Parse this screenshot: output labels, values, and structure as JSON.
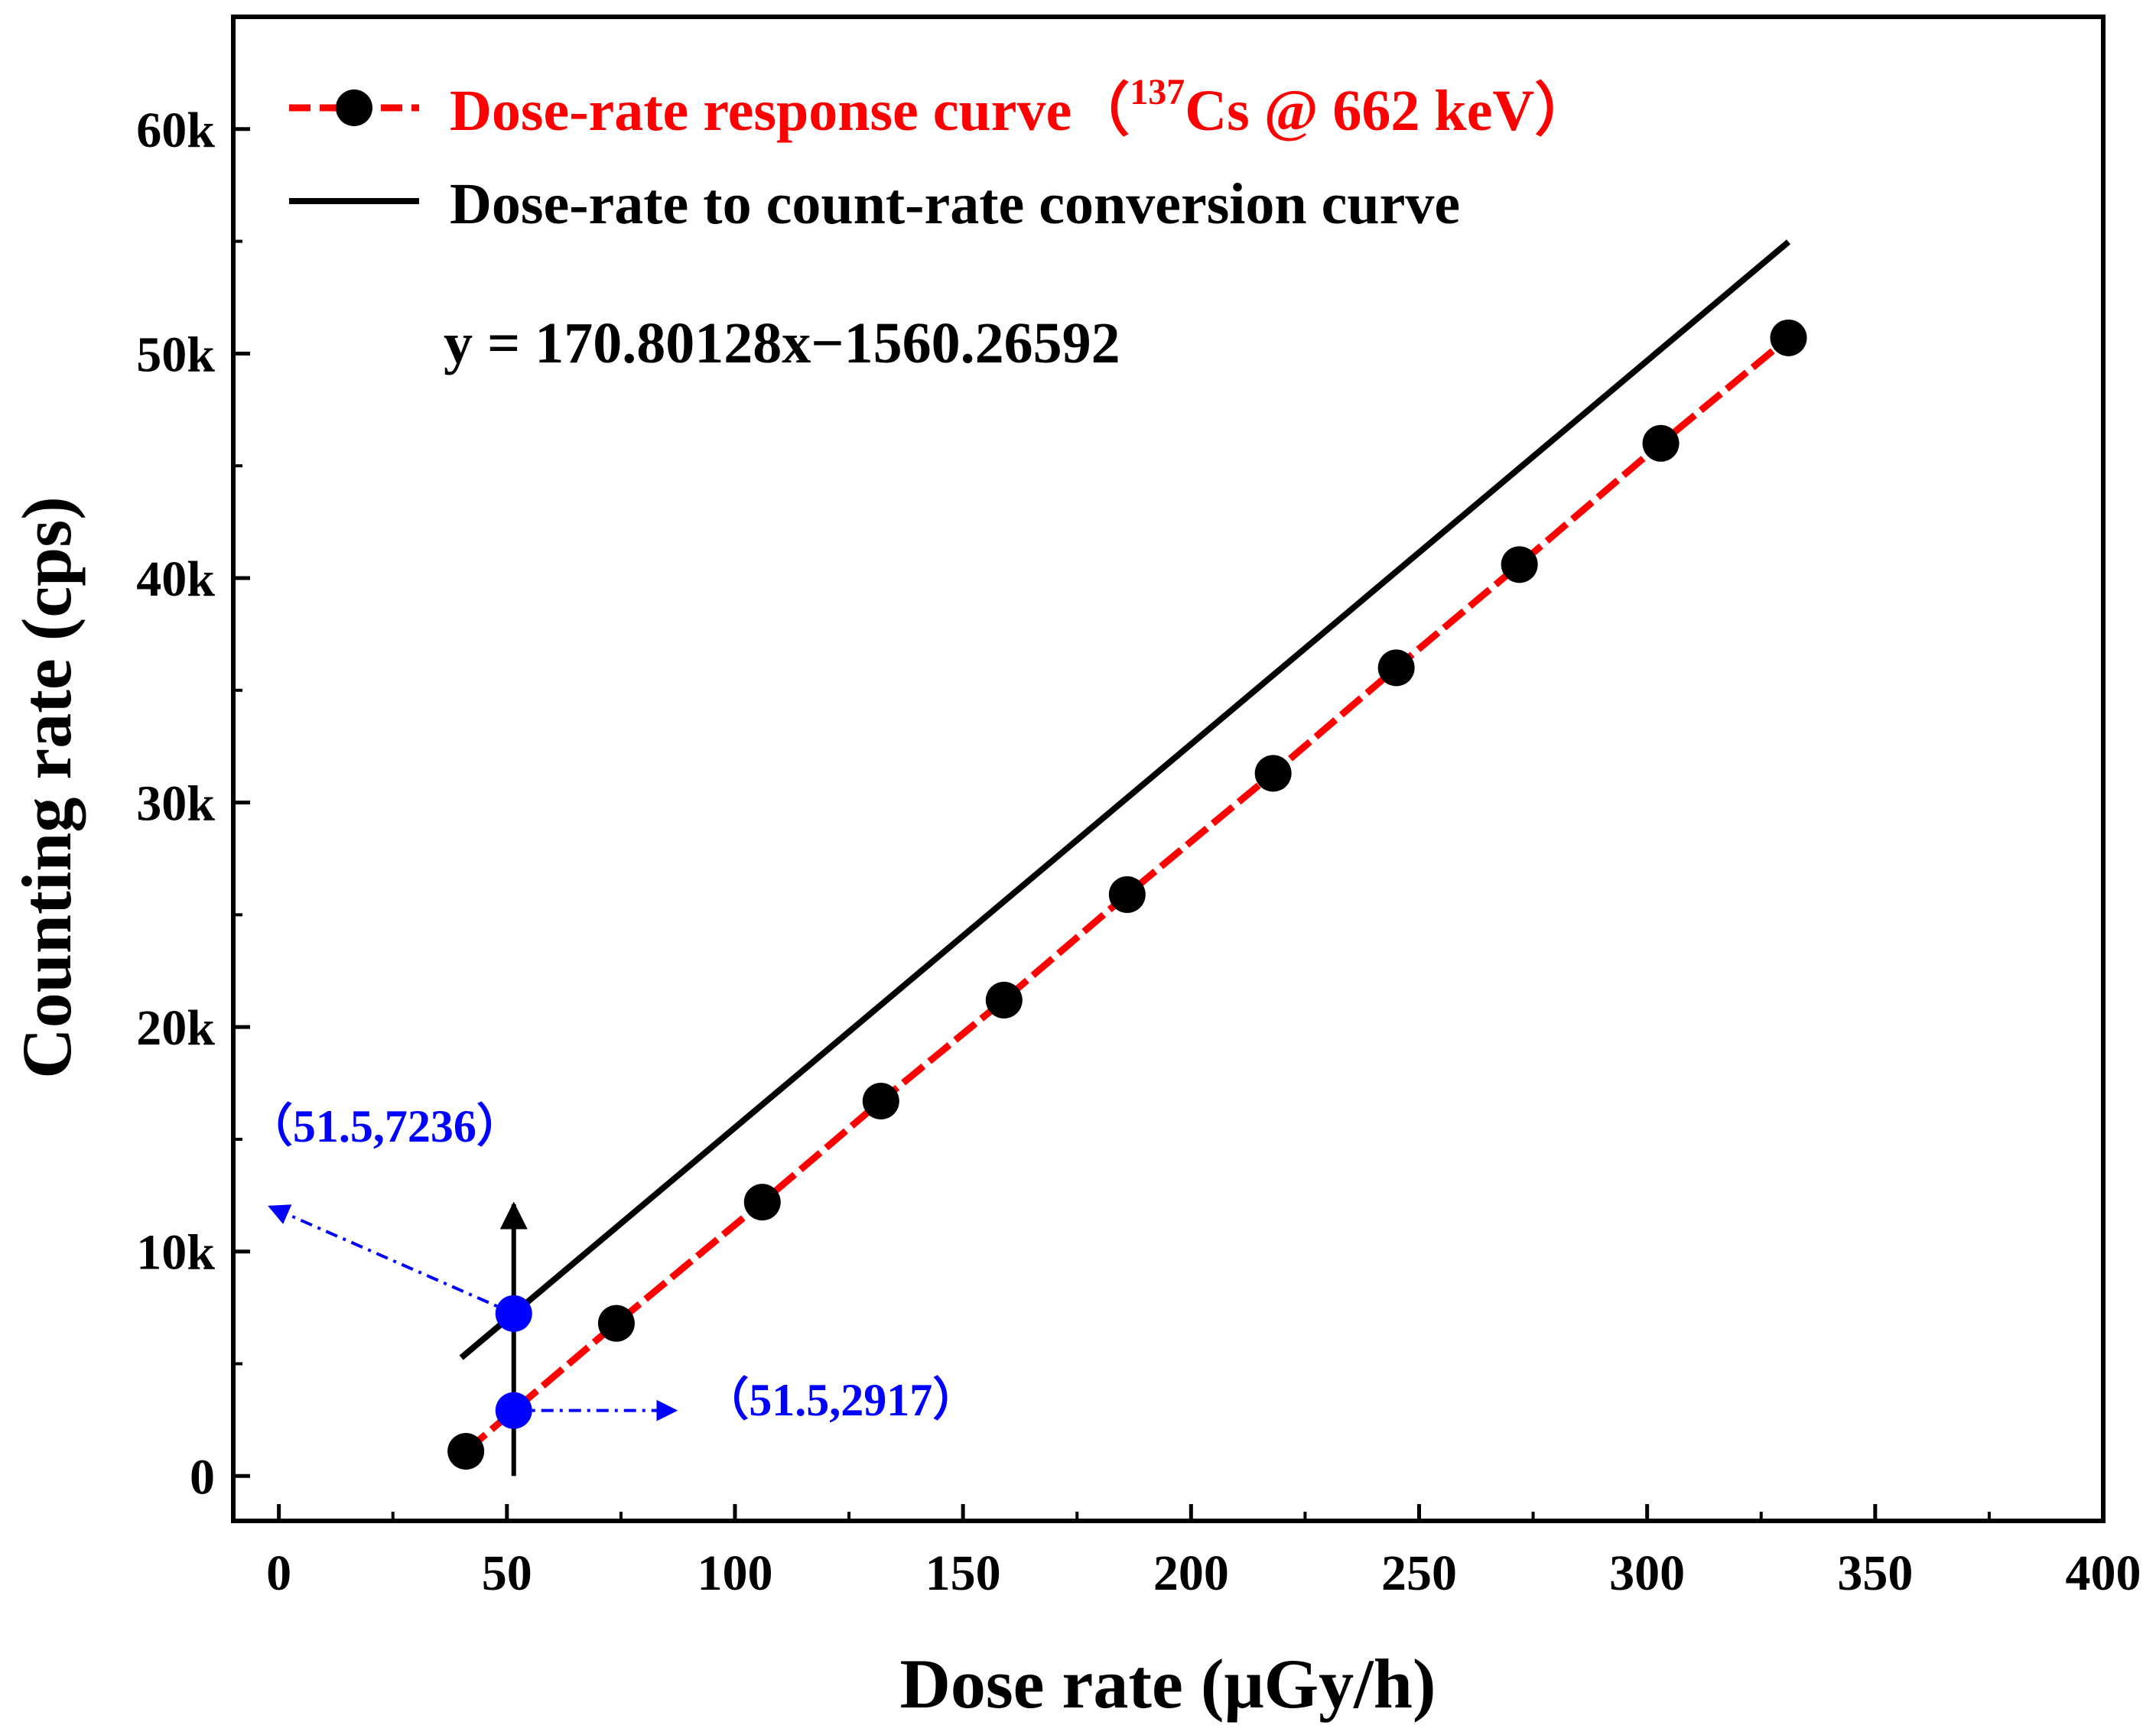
{
  "chart_data": {
    "type": "line",
    "xlabel": "Dose rate (μGy/h)",
    "ylabel": "Counting rate (cps)",
    "xlim": [
      -10,
      400
    ],
    "ylim": [
      -2000,
      65000
    ],
    "x_ticks": [
      0,
      50,
      100,
      150,
      200,
      250,
      300,
      350,
      400
    ],
    "x_tick_labels": [
      "0",
      "50",
      "100",
      "150",
      "200",
      "250",
      "300",
      "350",
      "400"
    ],
    "y_ticks": [
      0,
      10000,
      20000,
      30000,
      40000,
      50000,
      60000
    ],
    "y_tick_labels": [
      "0",
      "10k",
      "20k",
      "30k",
      "40k",
      "50k",
      "60k"
    ],
    "legend_position": "top-left",
    "colors": {
      "response": "#ff0000",
      "marker": "#000000",
      "conversion": "#000000",
      "annotation": "#0000ff",
      "axis": "#000000"
    },
    "series": [
      {
        "name": "Dose-rate response curve",
        "legend_main": "Dose-rate response curve（",
        "legend_sup": "137",
        "legend_tail": "Cs @ 662 keV）",
        "style": "dashed-line-with-markers",
        "x": [
          41,
          74,
          106,
          132,
          159,
          186,
          218,
          245,
          272,
          303,
          331
        ],
        "y": [
          1100,
          6800,
          12200,
          16700,
          21200,
          25900,
          31300,
          36000,
          40600,
          46000,
          50700
        ]
      },
      {
        "name": "Dose-rate to count-rate conversion curve",
        "legend_label": "Dose-rate to count-rate conversion curve",
        "style": "solid-line",
        "x": [
          40,
          331
        ],
        "y": [
          5272,
          54975
        ]
      }
    ],
    "equation": "y = 170.80128x−1560.26592",
    "vertical_marker": {
      "x": 51.5,
      "y_from": 0,
      "y_to": 12100
    },
    "annotations": [
      {
        "label": "（51.5,7236）",
        "x": 51.5,
        "y": 7236,
        "arrow_to": [
          -2,
          12000
        ],
        "text_at": [
          -7,
          14900
        ]
      },
      {
        "label": "（51.5,2917）",
        "x": 51.5,
        "y": 2917,
        "arrow_to": [
          87,
          2917
        ],
        "text_at": [
          93,
          2700
        ]
      }
    ]
  }
}
